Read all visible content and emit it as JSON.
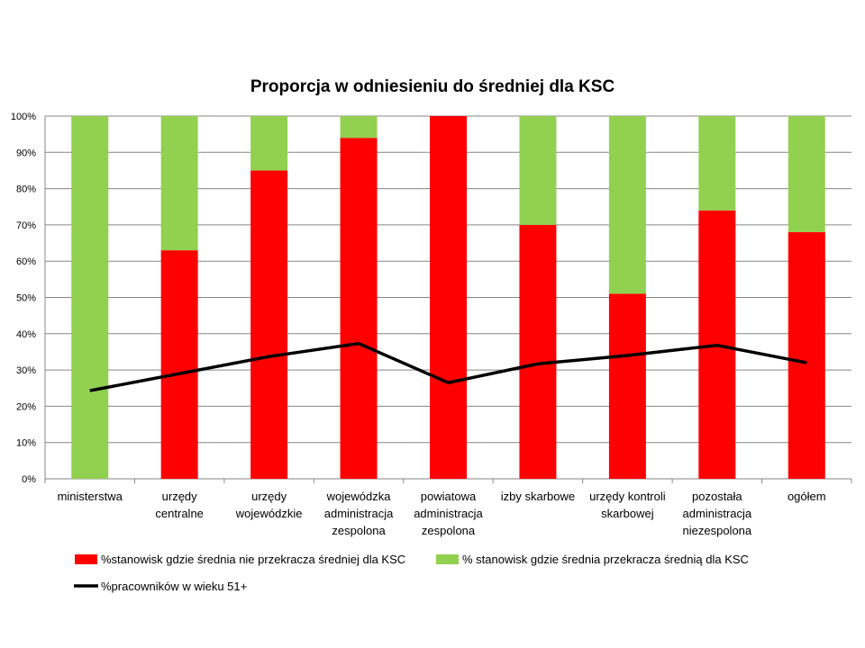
{
  "chart_data": {
    "type": "bar",
    "stacked": true,
    "title": "Proporcja w odniesieniu do średniej dla KSC",
    "categories": [
      [
        "ministerstwa"
      ],
      [
        "urzędy",
        "centralne"
      ],
      [
        "urzędy",
        "wojewódzkie"
      ],
      [
        "wojewódzka",
        "administracja",
        "zespolona"
      ],
      [
        "powiatowa",
        "administracja",
        "zespolona"
      ],
      [
        "izby skarbowe"
      ],
      [
        "urzędy kontroli",
        "skarbowej"
      ],
      [
        "pozostała",
        "administracja",
        "niezespolona"
      ],
      [
        "ogółem"
      ]
    ],
    "series": [
      {
        "name": "%stanowisk gdzie średnia nie przekracza średniej dla KSC",
        "kind": "bar",
        "color": "#ff0000",
        "values": [
          0,
          63,
          85,
          94,
          100,
          70,
          51,
          74,
          68
        ]
      },
      {
        "name": "% stanowisk gdzie średnia przekracza średnią dla KSC",
        "kind": "bar",
        "color": "#92d050",
        "values": [
          100,
          37,
          15,
          6,
          0,
          30,
          49,
          26,
          32
        ]
      },
      {
        "name": "%pracowników w wieku 51+",
        "kind": "line",
        "color": "#000000",
        "values": [
          24.3,
          29,
          33.7,
          37.3,
          26.5,
          31.7,
          34,
          36.8,
          32
        ]
      }
    ],
    "y_ticks": [
      "0%",
      "10%",
      "20%",
      "30%",
      "40%",
      "50%",
      "60%",
      "70%",
      "80%",
      "90%",
      "100%"
    ],
    "ylim": [
      0,
      100
    ],
    "grid": true,
    "legend_position": "bottom"
  }
}
